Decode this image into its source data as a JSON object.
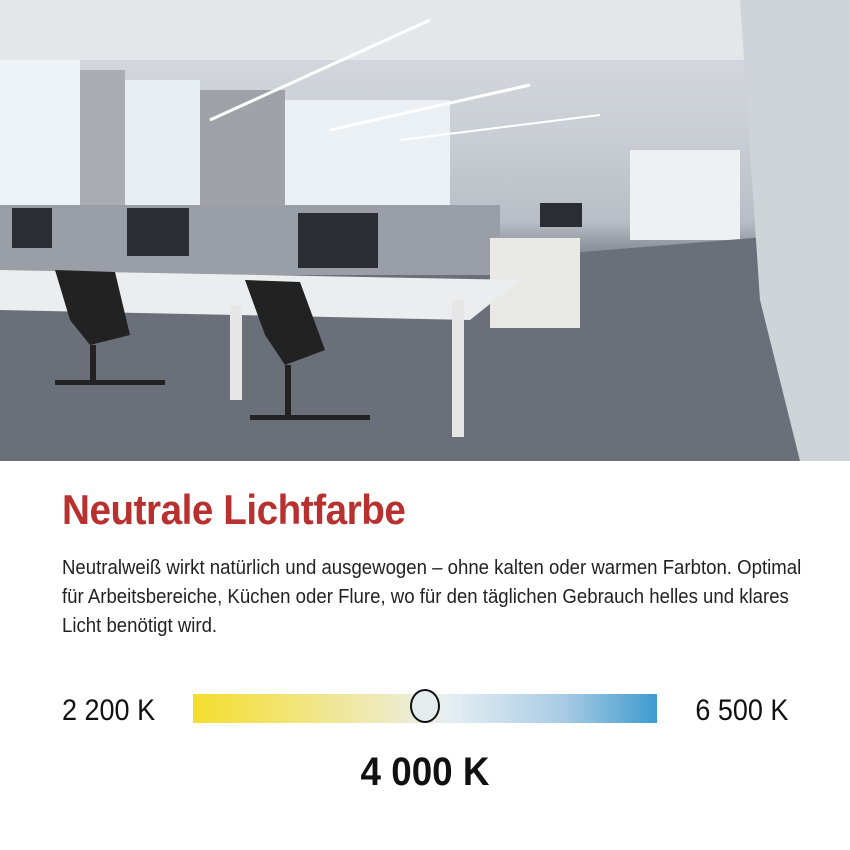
{
  "heading": "Neutrale Lichtfarbe",
  "description": "Neutralweiß wirkt natürlich und ausgewogen – ohne kalten oder warmen Farbton. Optimal für Arbeitsbereiche, Küchen oder Flure, wo für den täglichen Gebrauch helles und klares Licht benötigt wird.",
  "scale": {
    "min_label": "2 200 K",
    "max_label": "6 500 K",
    "current_label": "4 000 K",
    "marker_fraction": 0.5,
    "colors": {
      "warm": "#f4de2c",
      "neutral": "#e6eff4",
      "cool": "#3d9bcf"
    }
  },
  "colors": {
    "heading": "#b8312f"
  }
}
